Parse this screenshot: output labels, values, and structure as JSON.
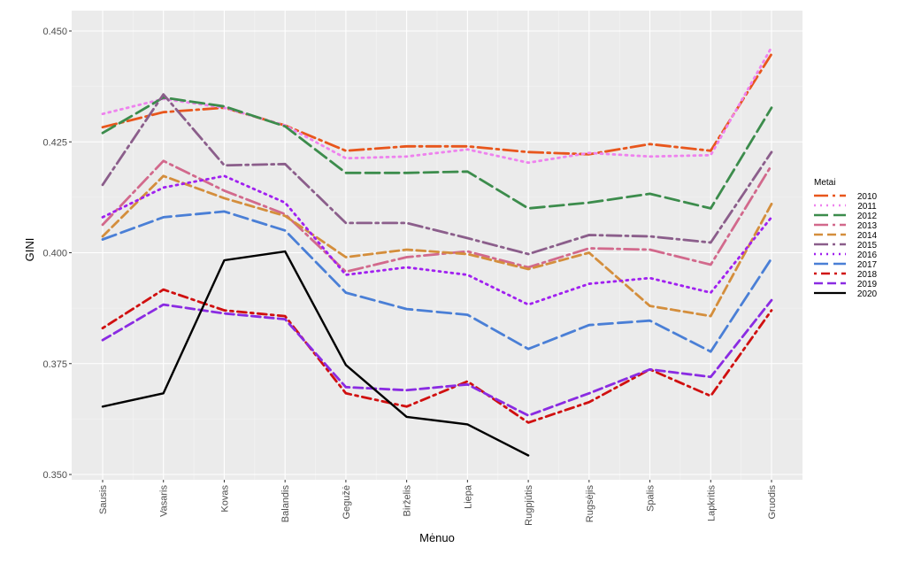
{
  "chart_data": {
    "type": "line",
    "xlabel": "Mėnuo",
    "ylabel": "GINI",
    "ylim": [
      0.35,
      0.45
    ],
    "y_ticks": [
      "0.350",
      "0.375",
      "0.400",
      "0.425",
      "0.450"
    ],
    "categories": [
      "Sausis",
      "Vasaris",
      "Kovas",
      "Balandis",
      "Gegužė",
      "Birželis",
      "Liepa",
      "Rugpjūtis",
      "Rugsėjis",
      "Spalis",
      "Lapkritis",
      "Gruodis"
    ],
    "legend_title": "Metai",
    "legend_position": "right",
    "grid": true,
    "series": [
      {
        "name": "2010",
        "color": "#e8561c",
        "dash": "longdash-dot",
        "values": [
          0.4283,
          0.4317,
          0.4327,
          0.4287,
          0.423,
          0.424,
          0.424,
          0.4227,
          0.4222,
          0.4245,
          0.423,
          0.4448
        ]
      },
      {
        "name": "2011",
        "color": "#ee82ee",
        "dash": "dotted",
        "values": [
          0.4313,
          0.4347,
          0.4327,
          0.4287,
          0.4213,
          0.4217,
          0.4233,
          0.4203,
          0.4225,
          0.4217,
          0.422,
          0.4463
        ]
      },
      {
        "name": "2012",
        "color": "#3c8c4c",
        "dash": "longdash",
        "values": [
          0.427,
          0.435,
          0.433,
          0.4285,
          0.418,
          0.418,
          0.4183,
          0.41,
          0.4113,
          0.4133,
          0.41,
          0.4327
        ]
      },
      {
        "name": "2013",
        "color": "#d2698c",
        "dash": "longdash-dot",
        "values": [
          0.4063,
          0.4207,
          0.414,
          0.4087,
          0.3957,
          0.399,
          0.4003,
          0.3967,
          0.401,
          0.4007,
          0.3973,
          0.4197
        ]
      },
      {
        "name": "2014",
        "color": "#d48e3c",
        "dash": "dashed",
        "values": [
          0.4037,
          0.4173,
          0.4123,
          0.4083,
          0.399,
          0.4007,
          0.3997,
          0.3963,
          0.4,
          0.388,
          0.3857,
          0.411
        ]
      },
      {
        "name": "2015",
        "color": "#8b5e8b",
        "dash": "longdash-dot",
        "values": [
          0.4153,
          0.4357,
          0.4197,
          0.42,
          0.4067,
          0.4067,
          0.4033,
          0.3997,
          0.404,
          0.4037,
          0.4023,
          0.4227
        ]
      },
      {
        "name": "2016",
        "color": "#a020f0",
        "dash": "dotted",
        "values": [
          0.408,
          0.4147,
          0.4173,
          0.4113,
          0.395,
          0.3967,
          0.395,
          0.3883,
          0.393,
          0.3943,
          0.391,
          0.408
        ]
      },
      {
        "name": "2017",
        "color": "#4a7fd6",
        "dash": "longdash",
        "values": [
          0.403,
          0.408,
          0.4093,
          0.405,
          0.391,
          0.3873,
          0.386,
          0.3783,
          0.3837,
          0.3847,
          0.3777,
          0.3987
        ]
      },
      {
        "name": "2018",
        "color": "#d01010",
        "dash": "dot-dash",
        "values": [
          0.383,
          0.3917,
          0.387,
          0.3857,
          0.3683,
          0.3653,
          0.371,
          0.3617,
          0.3663,
          0.3737,
          0.3677,
          0.387
        ]
      },
      {
        "name": "2019",
        "color": "#8a2be2",
        "dash": "dashed",
        "values": [
          0.3803,
          0.3883,
          0.3863,
          0.385,
          0.3697,
          0.369,
          0.3703,
          0.3633,
          0.3683,
          0.3737,
          0.372,
          0.3893
        ]
      },
      {
        "name": "2020",
        "color": "#000000",
        "dash": "solid",
        "values": [
          0.3653,
          0.3683,
          0.3983,
          0.4003,
          0.3747,
          0.363,
          0.3613,
          0.3543,
          null,
          null,
          null,
          null
        ]
      }
    ]
  }
}
